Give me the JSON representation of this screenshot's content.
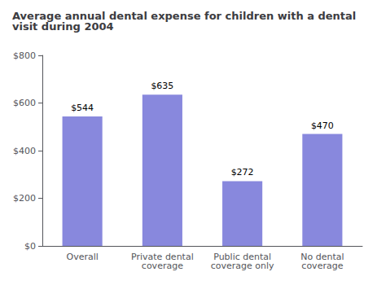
{
  "chart_data": {
    "type": "bar",
    "title": "Average annual dental expense for children with a dental visit during 2004",
    "categories": [
      "Overall",
      "Private dental\ncoverage",
      "Public dental\ncoverage only",
      "No dental\ncoverage"
    ],
    "values": [
      544,
      635,
      272,
      470
    ],
    "value_labels": [
      "$544",
      "$635",
      "$272",
      "$470"
    ],
    "data_labels": true,
    "color": "#8888dd",
    "ylim": [
      0,
      800
    ],
    "yticks": [
      {
        "value": 0,
        "label": "$0"
      },
      {
        "value": 200,
        "label": "$200"
      },
      {
        "value": 400,
        "label": "$400"
      },
      {
        "value": 600,
        "label": "$600"
      },
      {
        "value": 800,
        "label": "$800"
      }
    ],
    "grid": false
  }
}
